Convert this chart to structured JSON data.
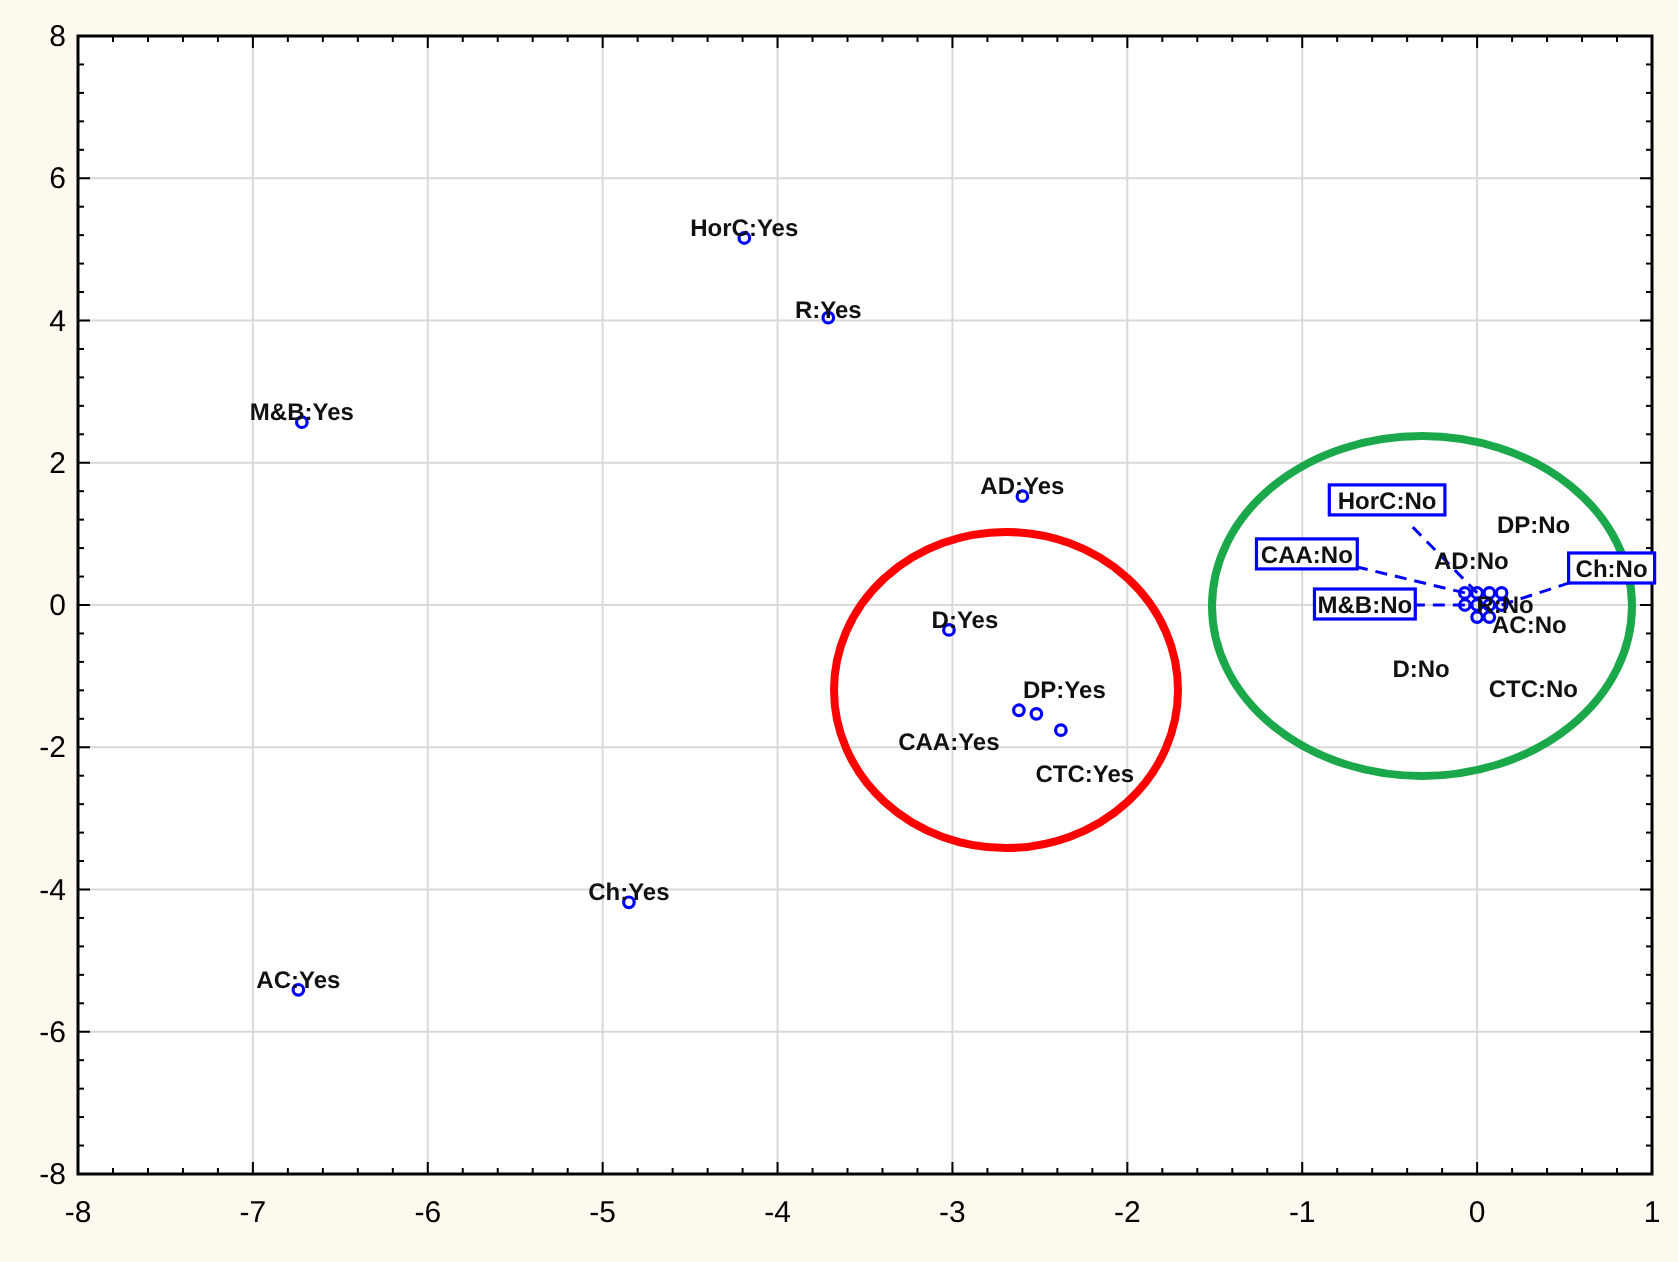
{
  "chart_data": {
    "type": "scatter",
    "xlim": [
      -8,
      1
    ],
    "ylim": [
      -8,
      8
    ],
    "xticks": [
      -8,
      -7,
      -6,
      -5,
      -4,
      -3,
      -2,
      -1,
      0,
      1
    ],
    "yticks": [
      -8,
      -6,
      -4,
      -2,
      0,
      2,
      4,
      6,
      8
    ],
    "grid": true,
    "marker": "circle",
    "series": [
      {
        "color": "#0000ff",
        "x": [
          -4.19,
          -3.71,
          -6.72,
          -2.6,
          -3.02,
          -2.62,
          -2.52,
          -2.38,
          -4.85,
          -6.74,
          0.0,
          0.14,
          -0.07,
          0.07,
          0.14,
          -0.07,
          0.0,
          0.07,
          0.0,
          0.07
        ],
        "values": [
          5.16,
          4.04,
          2.57,
          1.53,
          -0.35,
          -1.48,
          -1.53,
          -1.76,
          -4.18,
          -5.41,
          0.17,
          0.17,
          0.17,
          0.17,
          0.0,
          0.0,
          0.0,
          0.0,
          -0.17,
          -0.17
        ]
      }
    ],
    "annotations": [
      {
        "text": "HorC:Yes",
        "x": -4.19,
        "y": 5.16
      },
      {
        "text": "R:Yes",
        "x": -3.71,
        "y": 4.04
      },
      {
        "text": "M&B:Yes",
        "x": -6.72,
        "y": 2.57
      },
      {
        "text": "AD:Yes",
        "x": -2.6,
        "y": 1.53
      },
      {
        "text": "D:Yes",
        "x": -3.02,
        "y": -0.35
      },
      {
        "text": "CAA:Yes",
        "x": -2.62,
        "y": -1.48
      },
      {
        "text": "DP:Yes",
        "x": -2.52,
        "y": -1.53
      },
      {
        "text": "CTC:Yes",
        "x": -2.38,
        "y": -1.76
      },
      {
        "text": "Ch:Yes",
        "x": -4.85,
        "y": -4.18
      },
      {
        "text": "AC:Yes",
        "x": -6.74,
        "y": -5.41
      },
      {
        "text": "HorC:No",
        "x": 0.0,
        "y": 0.17
      },
      {
        "text": "DP:No",
        "x": 0.14,
        "y": 0.17
      },
      {
        "text": "CAA:No",
        "x": -0.07,
        "y": 0.17
      },
      {
        "text": "AD:No",
        "x": 0.07,
        "y": 0.17
      },
      {
        "text": "Ch:No",
        "x": 0.14,
        "y": 0.0
      },
      {
        "text": "M&B:No",
        "x": -0.07,
        "y": 0.0
      },
      {
        "text": "R:No",
        "x": 0.0,
        "y": 0.0
      },
      {
        "text": "AC:No",
        "x": 0.07,
        "y": 0.0
      },
      {
        "text": "D:No",
        "x": 0.0,
        "y": -0.17
      },
      {
        "text": "CTC:No",
        "x": 0.07,
        "y": -0.17
      }
    ]
  }
}
